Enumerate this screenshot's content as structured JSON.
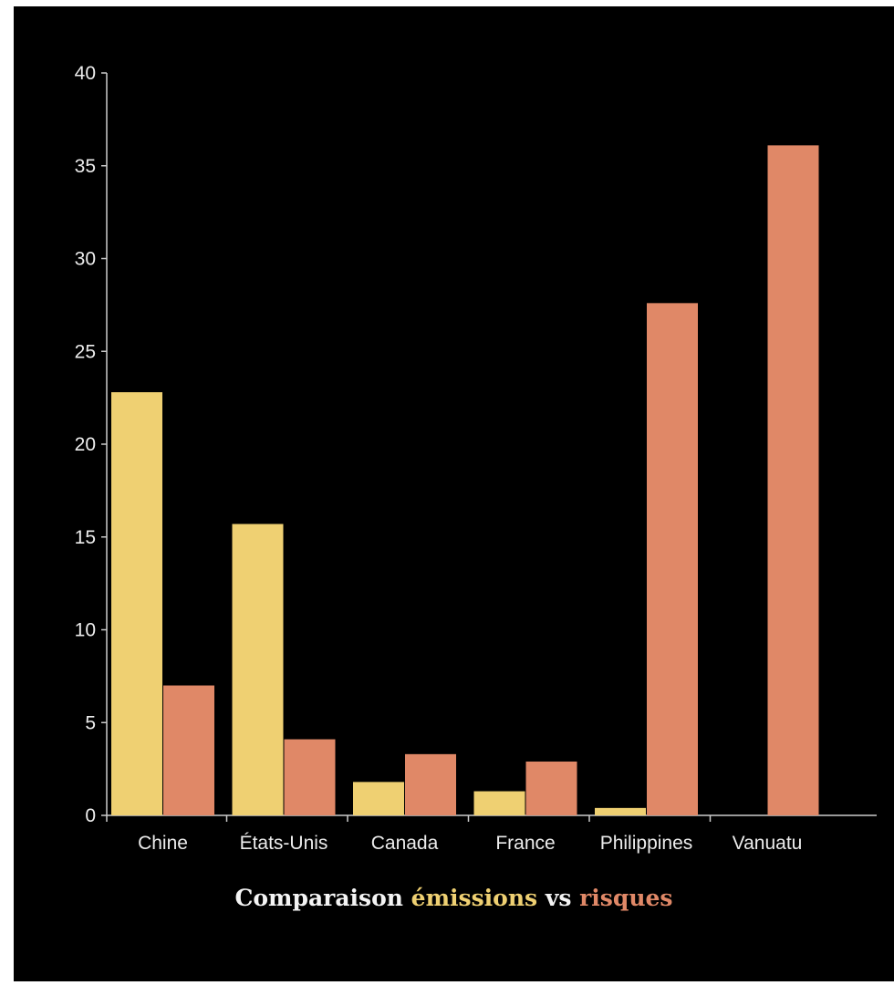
{
  "caption": {
    "prefix": "Comparaison ",
    "series1_word": "émissions",
    "middle": " vs ",
    "series2_word": "risques"
  },
  "colors": {
    "background": "#000000",
    "emissions": "#efd072",
    "risques": "#e08867",
    "axis": "#cccccc",
    "text": "#ececec"
  },
  "chart_data": {
    "type": "bar",
    "title": "Comparaison émissions vs risques",
    "categories": [
      "Chine",
      "États-Unis",
      "Canada",
      "France",
      "Philippines",
      "Vanuatu"
    ],
    "series": [
      {
        "name": "émissions",
        "color": "#efd072",
        "values": [
          22.8,
          15.7,
          1.8,
          1.3,
          0.4,
          0
        ]
      },
      {
        "name": "risques",
        "color": "#e08867",
        "values": [
          7.0,
          4.1,
          3.3,
          2.9,
          27.6,
          36.1
        ]
      }
    ],
    "ylim": [
      0,
      40
    ],
    "yticks": [
      0,
      5,
      10,
      15,
      20,
      25,
      30,
      35,
      40
    ],
    "grid": false,
    "legend": "none"
  }
}
